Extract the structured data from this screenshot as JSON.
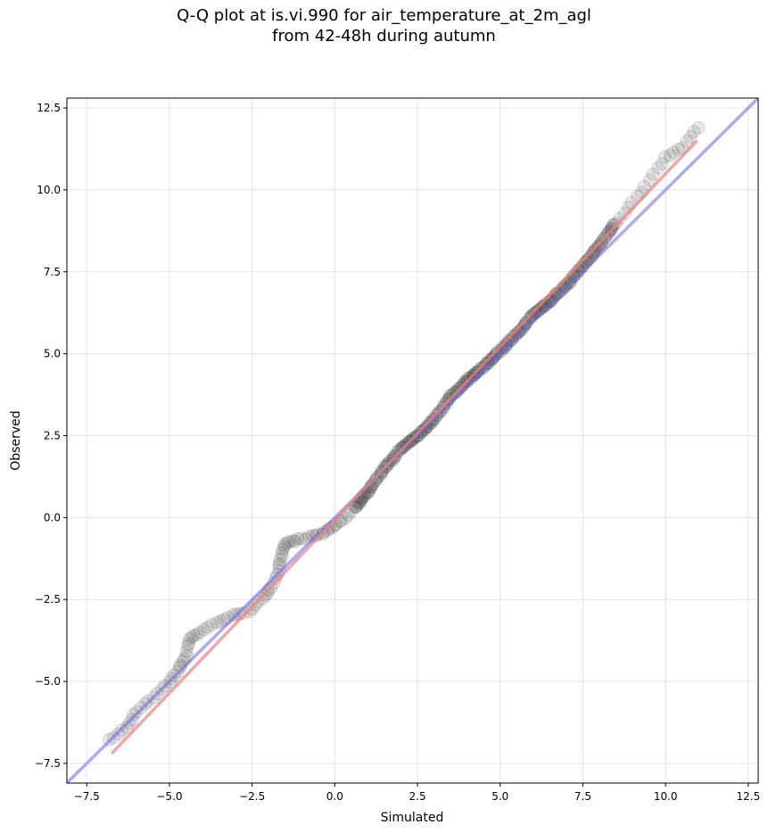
{
  "chart_data": {
    "type": "scatter",
    "title": "Q-Q plot at is.vi.990 for air_temperature_at_2m_agl\nfrom 42-48h during autumn",
    "xlabel": "Simulated",
    "ylabel": "Observed",
    "xlim": [
      -8.1,
      12.8
    ],
    "ylim": [
      -8.1,
      12.8
    ],
    "xticks": [
      -7.5,
      -5.0,
      -2.5,
      0.0,
      2.5,
      5.0,
      7.5,
      10.0,
      12.5
    ],
    "xtick_labels": [
      "−7.5",
      "−5.0",
      "−2.5",
      "0.0",
      "2.5",
      "5.0",
      "7.5",
      "10.0",
      "12.5"
    ],
    "yticks": [
      -7.5,
      -5.0,
      -2.5,
      0.0,
      2.5,
      5.0,
      7.5,
      10.0,
      12.5
    ],
    "ytick_labels": [
      "−7.5",
      "−5.0",
      "−2.5",
      "0.0",
      "2.5",
      "5.0",
      "7.5",
      "10.0",
      "12.5"
    ],
    "grid": true,
    "point_color": "#000000",
    "identity_line": {
      "color": "#6666ee",
      "from": [
        -8.1,
        -8.1
      ],
      "to": [
        12.8,
        12.8
      ]
    },
    "fit_line": {
      "color": "#f08080",
      "from": [
        -6.75,
        -7.2
      ],
      "to": [
        10.95,
        11.5
      ]
    },
    "anchor_points": [
      [
        -6.8,
        -6.8
      ],
      [
        -6.3,
        -6.4
      ],
      [
        -6.0,
        -5.9
      ],
      [
        -5.5,
        -5.5
      ],
      [
        -5.0,
        -5.0
      ],
      [
        -4.7,
        -4.6
      ],
      [
        -4.5,
        -4.2
      ],
      [
        -4.4,
        -3.7
      ],
      [
        -4.1,
        -3.5
      ],
      [
        -3.6,
        -3.2
      ],
      [
        -3.1,
        -3.0
      ],
      [
        -2.6,
        -2.85
      ],
      [
        -2.2,
        -2.5
      ],
      [
        -1.9,
        -2.1
      ],
      [
        -1.7,
        -1.6
      ],
      [
        -1.6,
        -1.2
      ],
      [
        -1.5,
        -0.8
      ],
      [
        -1.2,
        -0.7
      ],
      [
        -0.8,
        -0.6
      ],
      [
        -0.4,
        -0.5
      ],
      [
        -0.1,
        -0.3
      ],
      [
        0.2,
        -0.1
      ],
      [
        0.6,
        0.3
      ],
      [
        1.0,
        0.8
      ],
      [
        1.5,
        1.5
      ],
      [
        2.0,
        2.1
      ],
      [
        2.5,
        2.5
      ],
      [
        3.0,
        3.0
      ],
      [
        3.5,
        3.7
      ],
      [
        4.0,
        4.2
      ],
      [
        4.5,
        4.6
      ],
      [
        5.0,
        5.1
      ],
      [
        5.5,
        5.6
      ],
      [
        6.0,
        6.2
      ],
      [
        6.5,
        6.6
      ],
      [
        7.0,
        7.1
      ],
      [
        7.5,
        7.7
      ],
      [
        8.0,
        8.3
      ],
      [
        8.5,
        9.0
      ],
      [
        9.0,
        9.6
      ],
      [
        9.5,
        10.3
      ],
      [
        10.0,
        11.0
      ],
      [
        10.5,
        11.3
      ],
      [
        11.0,
        11.9
      ]
    ]
  }
}
